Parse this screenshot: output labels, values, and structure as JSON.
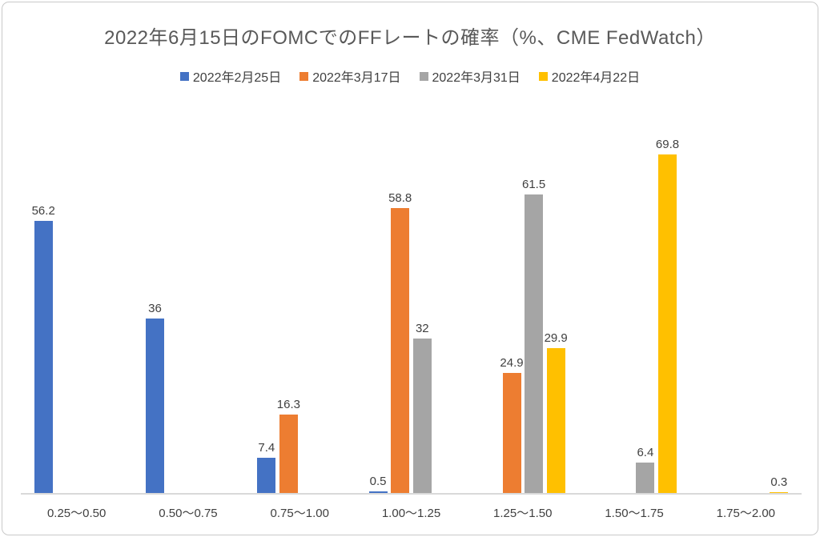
{
  "title": "2022年6月15日のFOMCでのFFレートの確率（%、CME FedWatch）",
  "chart_data": {
    "type": "bar",
    "title": "2022年6月15日のFOMCでのFFレートの確率（%、CME FedWatch）",
    "categories": [
      "0.25～0.50",
      "0.50～0.75",
      "0.75～1.00",
      "1.00～1.25",
      "1.25～1.50",
      "1.50～1.75",
      "1.75～2.00"
    ],
    "series": [
      {
        "name": "2022年2月25日",
        "color": "#4472C4",
        "values": [
          56.2,
          36,
          7.4,
          0.5,
          null,
          null,
          null
        ]
      },
      {
        "name": "2022年3月17日",
        "color": "#ED7D31",
        "values": [
          null,
          null,
          16.3,
          58.8,
          24.9,
          null,
          null
        ]
      },
      {
        "name": "2022年3月31日",
        "color": "#A5A5A5",
        "values": [
          null,
          null,
          null,
          32,
          61.5,
          6.4,
          null
        ]
      },
      {
        "name": "2022年4月22日",
        "color": "#FFC000",
        "values": [
          null,
          null,
          null,
          null,
          29.9,
          69.8,
          0.3
        ]
      }
    ],
    "xlabel": "",
    "ylabel": "",
    "ylim": [
      0,
      80
    ],
    "grid": false,
    "y_axis_visible": false,
    "legend_position": "top",
    "data_labels": true
  },
  "style": {
    "title_color": "#595959",
    "label_color": "#404040",
    "axis_line_color": "#D9D9D9",
    "frame_border_color": "#C9C9C9",
    "background": "#FFFFFF"
  }
}
